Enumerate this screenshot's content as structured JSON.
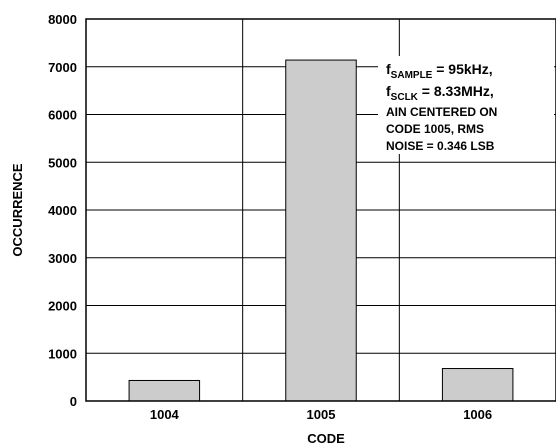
{
  "chart_data": {
    "type": "bar",
    "categories": [
      "1004",
      "1005",
      "1006"
    ],
    "values": [
      430,
      7140,
      680
    ],
    "xlabel": "CODE",
    "ylabel": "OCCURRENCE",
    "ylim": [
      0,
      8000
    ],
    "yticks": [
      "0",
      "1000",
      "2000",
      "3000",
      "4000",
      "5000",
      "6000",
      "7000",
      "8000"
    ],
    "grid": true,
    "bar_color": "#cccccc",
    "annotation": {
      "line1_prefix": "f",
      "line1_sub": "SAMPLE",
      "line1_suffix": " = 95kHz,",
      "line2_prefix": "f",
      "line2_sub": "SCLK",
      "line2_suffix": " = 8.33MHz,",
      "line3": "AIN CENTERED ON",
      "line4": "CODE 1005, RMS",
      "line5": "NOISE = 0.346 LSB"
    }
  }
}
